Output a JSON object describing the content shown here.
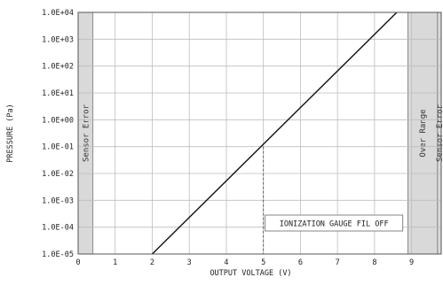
{
  "chart_data": {
    "type": "line",
    "xlabel": "OUTPUT VOLTAGE (V)",
    "ylabel": "PRESSURE (Pa)",
    "x_ticks": [
      "0",
      "1",
      "2",
      "3",
      "4",
      "5",
      "6",
      "7",
      "8",
      "9"
    ],
    "y_ticks": [
      "1.0E-05",
      "1.0E-04",
      "1.0E-03",
      "1.0E-02",
      "1.0E-01",
      "1.0E+00",
      "1.0E+01",
      "1.0E+02",
      "1.0E+03",
      "1.0E+04"
    ],
    "xlim": [
      0,
      9.8
    ],
    "y_log_exponent_range": [
      -5,
      4
    ],
    "y_scale": "log",
    "grid": true,
    "series": [
      {
        "x": [
          2,
          8.6
        ],
        "y": [
          1e-05,
          10000
        ]
      }
    ],
    "bands": [
      {
        "label": "Sensor Error",
        "x_range": [
          0,
          0.4
        ],
        "color": "#d9d9d9"
      },
      {
        "label": "Over Range",
        "x_range": [
          8.9,
          9.7
        ],
        "color": "#d9d9d9"
      },
      {
        "label": "Sensor Error",
        "x_range": [
          9.7,
          9.8
        ],
        "color": "#d9d9d9"
      }
    ],
    "annotation": {
      "label": "IONIZATION GAUGE FIL OFF",
      "x": 5,
      "y": 0.1
    }
  }
}
